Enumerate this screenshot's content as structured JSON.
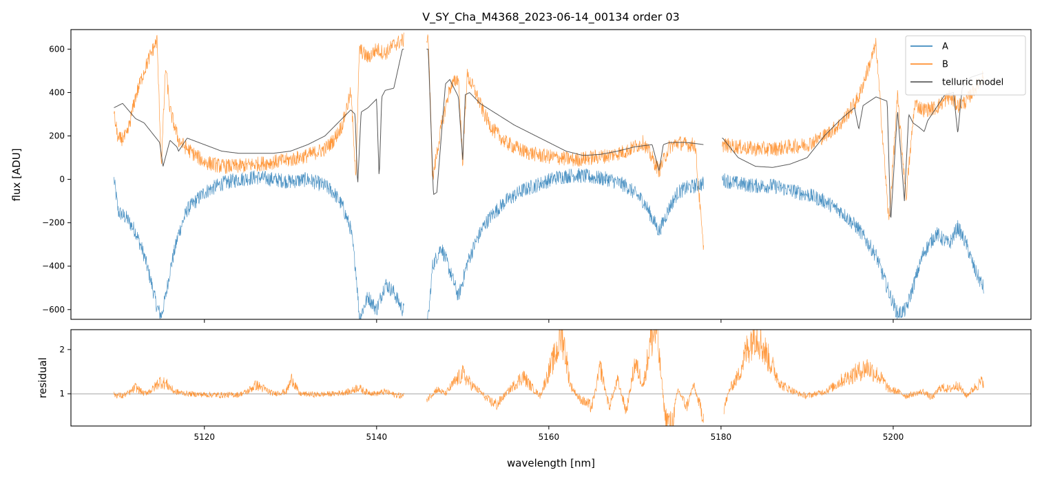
{
  "chart_data": [
    {
      "type": "line",
      "title": "V_SY_Cha_M4368_2023-06-14_00134  order 03",
      "xlabel": "",
      "ylabel": "flux [ADU]",
      "xlim": [
        5104.5,
        5216
      ],
      "ylim": [
        -645,
        690
      ],
      "x_ticks": [
        5120,
        5140,
        5160,
        5180,
        5200
      ],
      "y_ticks": [
        -600,
        -400,
        -200,
        0,
        200,
        400,
        600
      ],
      "y_tick_labels": [
        "−600",
        "−400",
        "−200",
        "0",
        "200",
        "400",
        "600"
      ],
      "grid": false,
      "legend_position": "top-right",
      "series": [
        {
          "name": "A",
          "color": "#1f77b4",
          "x": [
            5109.5,
            5110.0,
            5111.0,
            5112.0,
            5113.0,
            5113.8,
            5114.5,
            5115.0,
            5115.5,
            5116.0,
            5117.0,
            5118.0,
            5120.0,
            5122.0,
            5124.0,
            5126.0,
            5128.0,
            5130.0,
            5132.0,
            5134.0,
            5135.0,
            5136.0,
            5137.0,
            5137.6,
            5138.0,
            5139.0,
            5140.0,
            5141.0,
            5142.0,
            5143.0,
            5146.0,
            5146.5,
            5147.5,
            5148.5,
            5149.5,
            5150.0,
            5150.5,
            5151.5,
            5152.5,
            5153.5,
            5155.0,
            5157.0,
            5159.0,
            5161.0,
            5163.0,
            5165.0,
            5167.0,
            5169.0,
            5171.0,
            5172.8,
            5174.0,
            5175.0,
            5176.0,
            5177.0,
            5177.9,
            5180.0,
            5182.0,
            5184.0,
            5186.0,
            5188.0,
            5190.0,
            5192.0,
            5194.0,
            5196.0,
            5198.0,
            5199.5,
            5200.5,
            5201.5,
            5202.5,
            5203.5,
            5205.0,
            5206.5,
            5207.5,
            5208.5,
            5209.5,
            5210.5
          ],
          "y": [
            0,
            -150,
            -180,
            -240,
            -350,
            -470,
            -590,
            -630,
            -540,
            -420,
            -250,
            -140,
            -60,
            -20,
            0,
            10,
            0,
            -10,
            0,
            -30,
            -60,
            -120,
            -230,
            -420,
            -640,
            -540,
            -600,
            -480,
            -520,
            -600,
            -640,
            -400,
            -310,
            -420,
            -540,
            -470,
            -390,
            -290,
            -210,
            -160,
            -100,
            -50,
            -20,
            10,
            20,
            10,
            0,
            -30,
            -100,
            -240,
            -130,
            -60,
            -40,
            -30,
            -20,
            0,
            -20,
            -30,
            -30,
            -50,
            -70,
            -100,
            -150,
            -230,
            -350,
            -520,
            -620,
            -600,
            -470,
            -340,
            -250,
            -300,
            -220,
            -300,
            -420,
            -500
          ]
        },
        {
          "name": "B",
          "color": "#ff7f0e",
          "x": [
            5109.5,
            5110.0,
            5111.0,
            5112.0,
            5113.0,
            5113.8,
            5114.5,
            5115.0,
            5115.5,
            5116.0,
            5117.0,
            5118.0,
            5120.0,
            5122.0,
            5124.0,
            5126.0,
            5128.0,
            5130.0,
            5132.0,
            5134.0,
            5135.0,
            5136.0,
            5137.0,
            5137.6,
            5138.0,
            5139.0,
            5140.0,
            5141.0,
            5142.0,
            5143.0,
            5146.0,
            5146.5,
            5147.5,
            5148.5,
            5149.5,
            5150.0,
            5150.5,
            5151.5,
            5152.5,
            5153.5,
            5155.0,
            5157.0,
            5159.0,
            5161.0,
            5163.0,
            5165.0,
            5167.0,
            5169.0,
            5171.0,
            5172.8,
            5174.0,
            5175.0,
            5176.0,
            5177.0,
            5177.9,
            5180.0,
            5182.0,
            5184.0,
            5186.0,
            5188.0,
            5190.0,
            5192.0,
            5194.0,
            5196.0,
            5198.0,
            5199.5,
            5200.5,
            5201.5,
            5202.5,
            5203.5,
            5205.0,
            5206.5,
            5207.5,
            5208.5,
            5209.5,
            5210.5
          ],
          "y": [
            300,
            180,
            200,
            380,
            500,
            580,
            640,
            60,
            520,
            320,
            180,
            140,
            80,
            60,
            60,
            70,
            80,
            90,
            110,
            140,
            180,
            250,
            400,
            20,
            600,
            560,
            600,
            580,
            620,
            640,
            660,
            0,
            240,
            420,
            470,
            80,
            480,
            400,
            300,
            230,
            170,
            130,
            110,
            100,
            90,
            100,
            110,
            130,
            170,
            40,
            150,
            170,
            160,
            160,
            -300,
            160,
            150,
            140,
            140,
            150,
            160,
            200,
            260,
            380,
            620,
            -200,
            380,
            -80,
            350,
            320,
            330,
            380,
            340,
            360,
            420,
            480
          ]
        },
        {
          "name": "telluric model",
          "color": "#444444",
          "x": [
            5109.5,
            5110.5,
            5112.0,
            5113.0,
            5114.0,
            5114.8,
            5115.2,
            5116.0,
            5116.8,
            5117.0,
            5118.0,
            5120.0,
            5122.0,
            5124.0,
            5126.0,
            5128.0,
            5130.0,
            5132.0,
            5134.0,
            5135.0,
            5136.0,
            5137.0,
            5137.5,
            5137.8,
            5138.2,
            5139.0,
            5140.0,
            5140.3,
            5140.6,
            5141.0,
            5142.0,
            5143.0,
            5146.0,
            5146.6,
            5147.0,
            5148.0,
            5148.5,
            5149.5,
            5150.0,
            5150.3,
            5150.8,
            5152.0,
            5154.0,
            5156.0,
            5158.0,
            5160.0,
            5162.0,
            5164.0,
            5166.0,
            5168.0,
            5170.0,
            5172.0,
            5172.8,
            5173.3,
            5174.0,
            5176.0,
            5178.0,
            5180.2,
            5182.0,
            5184.0,
            5186.0,
            5188.0,
            5190.0,
            5191.2,
            5192.0,
            5194.0,
            5195.5,
            5196.0,
            5196.5,
            5198.0,
            5199.3,
            5199.7,
            5200.5,
            5201.3,
            5201.8,
            5202.3,
            5203.0,
            5203.6,
            5204.0,
            5205.0,
            5206.0,
            5207.0,
            5207.5,
            5208.0,
            5209.0,
            5210.5
          ],
          "y": [
            330,
            350,
            280,
            260,
            210,
            170,
            60,
            180,
            150,
            130,
            190,
            160,
            130,
            120,
            120,
            120,
            130,
            160,
            200,
            240,
            280,
            320,
            300,
            -30,
            310,
            330,
            370,
            0,
            380,
            410,
            420,
            600,
            600,
            -70,
            -60,
            440,
            460,
            380,
            90,
            390,
            400,
            350,
            300,
            250,
            210,
            170,
            130,
            110,
            115,
            130,
            150,
            160,
            40,
            160,
            170,
            170,
            160,
            190,
            100,
            60,
            55,
            70,
            100,
            160,
            200,
            280,
            330,
            230,
            340,
            380,
            360,
            -200,
            320,
            -100,
            300,
            260,
            240,
            220,
            270,
            330,
            390,
            400,
            210,
            420,
            470,
            490
          ]
        }
      ]
    },
    {
      "type": "line",
      "title": "",
      "xlabel": "wavelength [nm]",
      "ylabel": "residual",
      "xlim": [
        5104.5,
        5216
      ],
      "ylim": [
        0.27,
        2.45
      ],
      "x_ticks": [
        5120,
        5140,
        5160,
        5180,
        5200
      ],
      "y_ticks": [
        1,
        2
      ],
      "reference_line": 1,
      "grid": false,
      "series": [
        {
          "name": "B",
          "color": "#ff7f0e",
          "x": [
            5109.5,
            5110.5,
            5111.5,
            5112.0,
            5113.0,
            5114.0,
            5114.8,
            5115.6,
            5116.5,
            5118.0,
            5120.0,
            5122.0,
            5124.0,
            5125.0,
            5126.0,
            5128.0,
            5129.5,
            5130.2,
            5131.0,
            5133.0,
            5135.0,
            5137.0,
            5137.8,
            5138.6,
            5140.0,
            5141.0,
            5142.0,
            5143.0,
            5146.0,
            5147.0,
            5148.0,
            5149.0,
            5150.0,
            5151.0,
            5152.0,
            5153.0,
            5154.0,
            5155.0,
            5156.0,
            5157.0,
            5158.0,
            5159.0,
            5160.0,
            5161.0,
            5161.5,
            5162.5,
            5163.5,
            5165.0,
            5166.0,
            5167.0,
            5168.0,
            5169.0,
            5170.0,
            5171.0,
            5171.8,
            5172.5,
            5173.5,
            5174.3,
            5175.0,
            5176.0,
            5176.8,
            5177.9,
            5180.4,
            5181.0,
            5182.0,
            5183.0,
            5184.0,
            5185.0,
            5186.0,
            5187.0,
            5188.0,
            5189.0,
            5190.0,
            5191.0,
            5192.0,
            5193.0,
            5194.0,
            5195.0,
            5196.0,
            5197.0,
            5198.0,
            5198.8,
            5199.5,
            5200.5,
            5201.5,
            5202.5,
            5203.5,
            5204.5,
            5205.5,
            5206.5,
            5207.5,
            5208.5,
            5209.5,
            5210.5
          ],
          "y": [
            0.98,
            0.95,
            1.05,
            1.15,
            1.0,
            1.1,
            1.28,
            1.22,
            1.05,
            1.0,
            0.98,
            0.97,
            0.98,
            1.05,
            1.2,
            1.0,
            1.05,
            1.35,
            1.0,
            0.98,
            1.0,
            1.05,
            1.15,
            1.05,
            1.0,
            1.05,
            0.98,
            0.95,
            0.9,
            1.1,
            1.0,
            1.25,
            1.45,
            1.2,
            1.05,
            0.85,
            0.75,
            1.0,
            1.2,
            1.4,
            1.15,
            0.95,
            1.5,
            2.0,
            2.45,
            1.2,
            0.9,
            0.7,
            1.6,
            0.7,
            1.3,
            0.6,
            1.7,
            1.2,
            2.2,
            2.45,
            0.5,
            0.3,
            1.1,
            0.7,
            1.2,
            0.5,
            0.7,
            1.1,
            1.4,
            2.0,
            2.45,
            2.0,
            1.6,
            1.2,
            1.1,
            1.0,
            0.95,
            1.0,
            1.05,
            1.15,
            1.3,
            1.4,
            1.5,
            1.6,
            1.45,
            1.3,
            1.1,
            1.05,
            0.95,
            1.0,
            1.05,
            0.9,
            1.15,
            1.1,
            1.2,
            0.95,
            1.15,
            1.3
          ]
        }
      ]
    }
  ]
}
